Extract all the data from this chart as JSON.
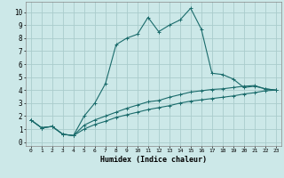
{
  "xlabel": "Humidex (Indice chaleur)",
  "bg_color": "#cce8e8",
  "grid_color": "#aacccc",
  "line_color": "#1a6b6b",
  "xlim": [
    -0.5,
    23.5
  ],
  "ylim": [
    -0.3,
    10.8
  ],
  "xticks": [
    0,
    1,
    2,
    3,
    4,
    5,
    6,
    7,
    8,
    9,
    10,
    11,
    12,
    13,
    14,
    15,
    16,
    17,
    18,
    19,
    20,
    21,
    22,
    23
  ],
  "yticks": [
    0,
    1,
    2,
    3,
    4,
    5,
    6,
    7,
    8,
    9,
    10
  ],
  "line1_x": [
    0,
    1,
    2,
    3,
    4,
    5,
    6,
    7,
    8,
    9,
    10,
    11,
    12,
    13,
    14,
    15,
    16,
    17,
    18,
    19,
    20,
    21,
    22,
    23
  ],
  "line1_y": [
    1.7,
    1.1,
    1.2,
    0.6,
    0.5,
    2.0,
    3.0,
    4.5,
    7.5,
    8.0,
    8.3,
    9.6,
    8.5,
    9.0,
    9.4,
    10.3,
    8.7,
    5.3,
    5.2,
    4.85,
    4.2,
    4.3,
    4.1,
    4.0
  ],
  "line2_x": [
    0,
    1,
    2,
    3,
    4,
    5,
    6,
    7,
    8,
    9,
    10,
    11,
    12,
    13,
    14,
    15,
    16,
    17,
    18,
    19,
    20,
    21,
    22,
    23
  ],
  "line2_y": [
    1.7,
    1.1,
    1.2,
    0.6,
    0.5,
    1.3,
    1.7,
    2.0,
    2.3,
    2.6,
    2.85,
    3.1,
    3.2,
    3.45,
    3.65,
    3.85,
    3.95,
    4.05,
    4.1,
    4.2,
    4.3,
    4.35,
    4.1,
    4.0
  ],
  "line3_x": [
    0,
    1,
    2,
    3,
    4,
    5,
    6,
    7,
    8,
    9,
    10,
    11,
    12,
    13,
    14,
    15,
    16,
    17,
    18,
    19,
    20,
    21,
    22,
    23
  ],
  "line3_y": [
    1.7,
    1.1,
    1.2,
    0.6,
    0.5,
    1.0,
    1.35,
    1.6,
    1.9,
    2.1,
    2.3,
    2.5,
    2.65,
    2.8,
    3.0,
    3.15,
    3.25,
    3.35,
    3.45,
    3.55,
    3.7,
    3.8,
    3.95,
    4.0
  ]
}
